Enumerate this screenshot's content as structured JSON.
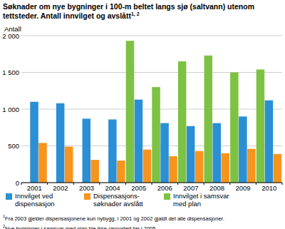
{
  "chart_data": {
    "type": "bar",
    "title": "Søknader om nye bygninger i 100-m beltet langs sjø (saltvann) utenom tettsteder. Antall innvilget og avslått",
    "title_superscript": "1, 2",
    "y_label": "Antall",
    "categories": [
      "2001",
      "2002",
      "2003",
      "2004",
      "2005",
      "2006",
      "2007",
      "2008",
      "2009",
      "2010"
    ],
    "series": [
      {
        "name": "Innvilget ved dispensasjon",
        "color": "#2a8fd4",
        "values": [
          1100,
          1080,
          870,
          860,
          1130,
          810,
          770,
          810,
          900,
          1120
        ]
      },
      {
        "name": "Dispensasjons-søknader avslått",
        "color": "#f7941d",
        "values": [
          540,
          490,
          310,
          300,
          450,
          360,
          430,
          400,
          460,
          390
        ]
      },
      {
        "name": "Innvilget i samsvar med plan",
        "color": "#7dc242",
        "values": [
          null,
          null,
          null,
          null,
          1930,
          1300,
          1650,
          1730,
          1500,
          1540
        ]
      }
    ],
    "ylim": [
      0,
      2000
    ],
    "yticks": [
      0,
      500,
      {
        "value": 1000,
        "label": "1 000"
      },
      {
        "value": 1500,
        "label": "1 500"
      },
      {
        "value": 2000,
        "label": "2 000"
      }
    ],
    "grid": true,
    "legend": "bottom",
    "footnotes": [
      {
        "marker": "1",
        "text": "Fra 2003 gjelder dispensasjonene kun nybygg, i 2001 og 2002 gjaldt det alle dispensasjoner."
      },
      {
        "marker": "2",
        "text": "Nye bygninger i samsvar med plan ble ikke rapportert før i 2005."
      }
    ]
  }
}
